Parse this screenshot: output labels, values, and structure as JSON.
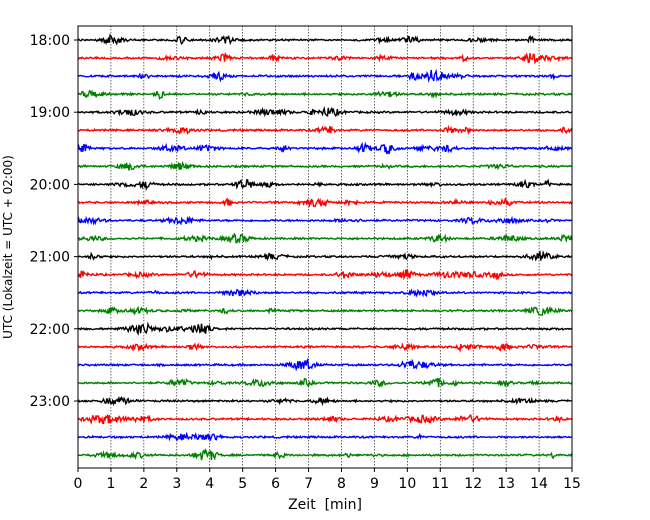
{
  "chart_data": {
    "type": "line",
    "subtype": "helicorder-seismogram",
    "xlabel": "Zeit  [min]",
    "ylabel": "UTC (Lokalzeit = UTC + 02:00)",
    "xlim": [
      0,
      15
    ],
    "x_ticks": [
      "0",
      "1",
      "2",
      "3",
      "4",
      "5",
      "6",
      "7",
      "8",
      "9",
      "10",
      "11",
      "12",
      "13",
      "14",
      "15"
    ],
    "y_tick_labels": [
      "18:00",
      "19:00",
      "20:00",
      "21:00",
      "22:00",
      "23:00"
    ],
    "vertical_grid": true,
    "trace_interval_min": 15,
    "trace_count": 24,
    "trace_colors": [
      "#000000",
      "#ff0000",
      "#0000ff",
      "#008000"
    ],
    "traces": [
      {
        "start": "18:00",
        "color": "#000000"
      },
      {
        "start": "18:15",
        "color": "#ff0000"
      },
      {
        "start": "18:30",
        "color": "#0000ff"
      },
      {
        "start": "18:45",
        "color": "#008000"
      },
      {
        "start": "19:00",
        "color": "#000000"
      },
      {
        "start": "19:15",
        "color": "#ff0000"
      },
      {
        "start": "19:30",
        "color": "#0000ff"
      },
      {
        "start": "19:45",
        "color": "#008000"
      },
      {
        "start": "20:00",
        "color": "#000000"
      },
      {
        "start": "20:15",
        "color": "#ff0000"
      },
      {
        "start": "20:30",
        "color": "#0000ff"
      },
      {
        "start": "20:45",
        "color": "#008000"
      },
      {
        "start": "21:00",
        "color": "#000000"
      },
      {
        "start": "21:15",
        "color": "#ff0000"
      },
      {
        "start": "21:30",
        "color": "#0000ff"
      },
      {
        "start": "21:45",
        "color": "#008000"
      },
      {
        "start": "22:00",
        "color": "#000000"
      },
      {
        "start": "22:15",
        "color": "#ff0000"
      },
      {
        "start": "22:30",
        "color": "#0000ff"
      },
      {
        "start": "22:45",
        "color": "#008000"
      },
      {
        "start": "23:00",
        "color": "#000000"
      },
      {
        "start": "23:15",
        "color": "#ff0000"
      },
      {
        "start": "23:30",
        "color": "#0000ff"
      },
      {
        "start": "23:45",
        "color": "#008000"
      }
    ],
    "notable_events": [
      {
        "trace_start": "23:45",
        "x_min": 3.9,
        "description": "largest burst"
      }
    ]
  }
}
